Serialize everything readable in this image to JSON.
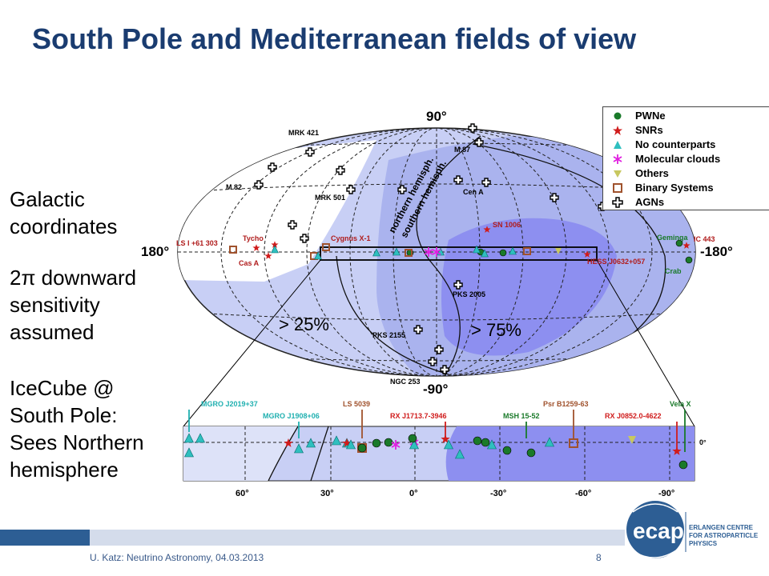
{
  "title": "South Pole and Mediterranean fields of view",
  "side_text": {
    "p1": [
      "Galactic",
      "coordinates"
    ],
    "p2": [
      "2π downward",
      "sensitivity",
      "assumed"
    ],
    "p3": [
      "IceCube @",
      "South Pole:",
      "Sees Northern",
      "hemisphere"
    ]
  },
  "map_labels": {
    "top": "90°",
    "bottom": "-90°",
    "left": "180°",
    "right": "-180°",
    "hemi_north": "northern hemisph.",
    "hemi_south": "southern hemisph.",
    "pct25": "> 25%",
    "pct75": "> 75%"
  },
  "sources_top": {
    "mrk421": "MRK 421",
    "m87": "M 87",
    "m82": "M 82",
    "mrk501": "MRK 501",
    "cena": "Cen A",
    "sn1006": "SN 1006",
    "lsi": "LS I +61 303",
    "tycho": "Tycho",
    "casa": "Cas A",
    "cygx1": "Cygnus X-1",
    "geminga": "Geminga",
    "ic443": "IC 443",
    "hess": "HESS J0632+057",
    "crab": "Crab",
    "pks2005": "PKS 2005",
    "pks2155": "PKS 2155",
    "ngc253": "NGC 253"
  },
  "legend": [
    {
      "symbol": "circle",
      "label": "PWNe",
      "color": "#1a7a2a"
    },
    {
      "symbol": "star",
      "label": "SNRs",
      "color": "#d01c1c"
    },
    {
      "symbol": "triangle",
      "label": "No counterparts",
      "color": "#2fbfbf"
    },
    {
      "symbol": "asterisk",
      "label": "Molecular clouds",
      "color": "#e020e0"
    },
    {
      "symbol": "triangle-down",
      "label": "Others",
      "color": "#c8c860"
    },
    {
      "symbol": "square",
      "label": "Binary Systems",
      "color": "#a0522d"
    },
    {
      "symbol": "cross",
      "label": "AGNs",
      "color": "#000000"
    }
  ],
  "zoom_labels": {
    "mgro2019": "MGRO J2019+37",
    "mgro1908": "MGRO J1908+06",
    "ls5039": "LS 5039",
    "rxj1713": "RX J1713.7-3946",
    "msh": "MSH 15-52",
    "psr": "Psr B1259-63",
    "rxj0852": "RX J0852.0-4622",
    "velax": "Vela X",
    "zero_lat": "0°"
  },
  "zoom_ticks": [
    "60°",
    "30°",
    "0°",
    "-30°",
    "-60°",
    "-90°"
  ],
  "footer": {
    "text": "U. Katz: Neutrino Astronomy, 04.03.2013",
    "page": "8"
  },
  "logo": {
    "name": "ecap",
    "lines": [
      "ERLANGEN CENTRE",
      "FOR ASTROPARTICLE",
      "PHYSICS"
    ]
  },
  "colors": {
    "title": "#1a3c70",
    "sky_light": "#c8cff5",
    "sky_mid": "#aab3ee",
    "sky_dark": "#8d8ff0",
    "pwn": "#1a7a2a",
    "snr": "#d01c1c",
    "nocp": "#2fbfbf"
  }
}
